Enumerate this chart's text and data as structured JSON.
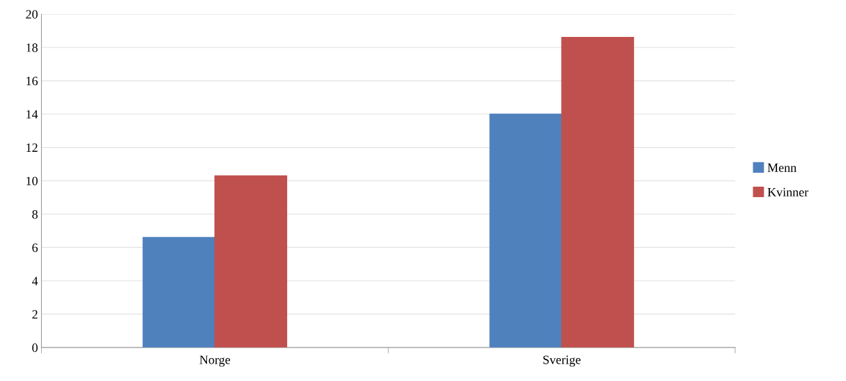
{
  "chart_data": {
    "type": "bar",
    "categories": [
      "Norge",
      "Sverige"
    ],
    "series": [
      {
        "name": "Menn",
        "color": "#4f81bd",
        "values": [
          6.6,
          14.0
        ]
      },
      {
        "name": "Kvinner",
        "color": "#c0504d",
        "values": [
          10.3,
          18.6
        ]
      }
    ],
    "ylim": [
      0,
      20
    ],
    "yticks": [
      0,
      2,
      4,
      6,
      8,
      10,
      12,
      14,
      16,
      18,
      20
    ],
    "grid": "y",
    "legend": "right"
  }
}
